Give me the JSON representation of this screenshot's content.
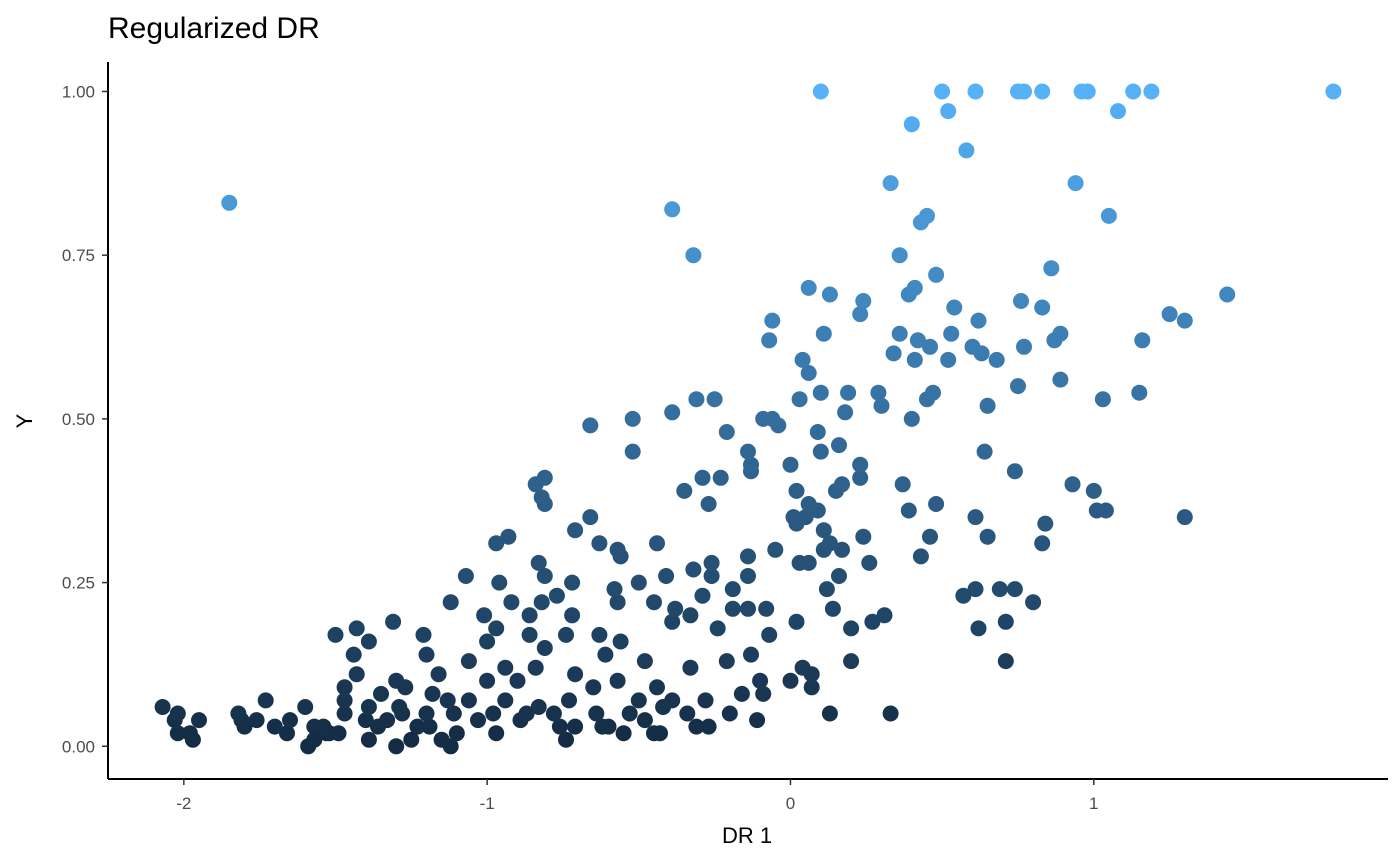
{
  "chart_data": {
    "type": "scatter",
    "title": "Regularized DR",
    "xlabel": "DR 1",
    "ylabel": "Y",
    "xlim": [
      -2.25,
      1.97
    ],
    "ylim": [
      -0.05,
      1.045
    ],
    "x_ticks": [
      -2,
      -1,
      0,
      1
    ],
    "x_tick_labels": [
      "-2",
      "-1",
      "0",
      "1"
    ],
    "y_ticks": [
      0,
      0.25,
      0.5,
      0.75,
      1
    ],
    "y_tick_labels": [
      "0.00",
      "0.25",
      "0.50",
      "0.75",
      "1.00"
    ],
    "grid": false,
    "legend": "none",
    "color_scale": {
      "low": "#132b43",
      "high": "#56b1f7",
      "mapped_to": "y"
    },
    "points": [
      [
        0.1,
        1.0
      ],
      [
        0.5,
        1.0
      ],
      [
        0.61,
        1.0
      ],
      [
        0.75,
        1.0
      ],
      [
        0.77,
        1.0
      ],
      [
        0.83,
        1.0
      ],
      [
        0.96,
        1.0
      ],
      [
        0.98,
        1.0
      ],
      [
        1.13,
        1.0
      ],
      [
        1.19,
        1.0
      ],
      [
        1.79,
        1.0
      ],
      [
        0.52,
        0.97
      ],
      [
        1.08,
        0.97
      ],
      [
        0.4,
        0.95
      ],
      [
        0.58,
        0.91
      ],
      [
        -1.85,
        0.83
      ],
      [
        0.33,
        0.86
      ],
      [
        0.94,
        0.86
      ],
      [
        -0.39,
        0.82
      ],
      [
        0.45,
        0.81
      ],
      [
        1.05,
        0.81
      ],
      [
        0.43,
        0.8
      ],
      [
        -0.32,
        0.75
      ],
      [
        0.36,
        0.75
      ],
      [
        0.48,
        0.72
      ],
      [
        0.86,
        0.73
      ],
      [
        0.41,
        0.7
      ],
      [
        0.06,
        0.7
      ],
      [
        0.13,
        0.69
      ],
      [
        0.39,
        0.69
      ],
      [
        1.44,
        0.69
      ],
      [
        0.24,
        0.68
      ],
      [
        0.76,
        0.68
      ],
      [
        0.54,
        0.67
      ],
      [
        0.83,
        0.67
      ],
      [
        0.23,
        0.66
      ],
      [
        1.25,
        0.66
      ],
      [
        -0.06,
        0.65
      ],
      [
        0.62,
        0.65
      ],
      [
        1.3,
        0.65
      ],
      [
        0.11,
        0.63
      ],
      [
        0.36,
        0.63
      ],
      [
        0.53,
        0.63
      ],
      [
        0.89,
        0.63
      ],
      [
        -0.07,
        0.62
      ],
      [
        0.42,
        0.62
      ],
      [
        0.87,
        0.62
      ],
      [
        1.16,
        0.62
      ],
      [
        0.46,
        0.61
      ],
      [
        0.6,
        0.61
      ],
      [
        0.77,
        0.61
      ],
      [
        0.34,
        0.6
      ],
      [
        0.63,
        0.6
      ],
      [
        0.04,
        0.59
      ],
      [
        0.41,
        0.59
      ],
      [
        0.52,
        0.59
      ],
      [
        0.68,
        0.59
      ],
      [
        0.06,
        0.57
      ],
      [
        0.89,
        0.56
      ],
      [
        0.75,
        0.55
      ],
      [
        0.1,
        0.54
      ],
      [
        0.19,
        0.54
      ],
      [
        0.29,
        0.54
      ],
      [
        0.47,
        0.54
      ],
      [
        1.15,
        0.54
      ],
      [
        -0.31,
        0.53
      ],
      [
        -0.25,
        0.53
      ],
      [
        0.03,
        0.53
      ],
      [
        0.45,
        0.53
      ],
      [
        1.03,
        0.53
      ],
      [
        0.3,
        0.52
      ],
      [
        0.65,
        0.52
      ],
      [
        -0.39,
        0.51
      ],
      [
        0.18,
        0.51
      ],
      [
        -0.52,
        0.5
      ],
      [
        -0.09,
        0.5
      ],
      [
        -0.06,
        0.5
      ],
      [
        0.4,
        0.5
      ],
      [
        -0.66,
        0.49
      ],
      [
        -0.04,
        0.49
      ],
      [
        -0.21,
        0.48
      ],
      [
        0.09,
        0.48
      ],
      [
        0.16,
        0.46
      ],
      [
        -0.52,
        0.45
      ],
      [
        -0.14,
        0.45
      ],
      [
        0.1,
        0.45
      ],
      [
        0.64,
        0.45
      ],
      [
        -0.13,
        0.43
      ],
      [
        0.0,
        0.43
      ],
      [
        0.23,
        0.43
      ],
      [
        -0.13,
        0.42
      ],
      [
        0.74,
        0.42
      ],
      [
        -0.81,
        0.41
      ],
      [
        -0.29,
        0.41
      ],
      [
        -0.23,
        0.41
      ],
      [
        0.23,
        0.41
      ],
      [
        -0.84,
        0.4
      ],
      [
        0.17,
        0.4
      ],
      [
        0.37,
        0.4
      ],
      [
        0.93,
        0.4
      ],
      [
        -0.35,
        0.39
      ],
      [
        0.02,
        0.39
      ],
      [
        0.15,
        0.39
      ],
      [
        1.0,
        0.39
      ],
      [
        -0.82,
        0.38
      ],
      [
        -0.81,
        0.37
      ],
      [
        -0.27,
        0.37
      ],
      [
        0.06,
        0.37
      ],
      [
        0.48,
        0.37
      ],
      [
        0.09,
        0.36
      ],
      [
        0.39,
        0.36
      ],
      [
        1.01,
        0.36
      ],
      [
        1.04,
        0.36
      ],
      [
        -0.66,
        0.35
      ],
      [
        0.01,
        0.35
      ],
      [
        0.05,
        0.35
      ],
      [
        0.61,
        0.35
      ],
      [
        1.3,
        0.35
      ],
      [
        0.02,
        0.34
      ],
      [
        0.84,
        0.34
      ],
      [
        -0.71,
        0.33
      ],
      [
        0.11,
        0.33
      ],
      [
        -0.93,
        0.32
      ],
      [
        0.24,
        0.32
      ],
      [
        0.46,
        0.32
      ],
      [
        0.65,
        0.32
      ],
      [
        -0.97,
        0.31
      ],
      [
        -0.63,
        0.31
      ],
      [
        -0.44,
        0.31
      ],
      [
        0.13,
        0.31
      ],
      [
        0.83,
        0.31
      ],
      [
        -0.57,
        0.3
      ],
      [
        -0.05,
        0.3
      ],
      [
        0.11,
        0.3
      ],
      [
        0.17,
        0.3
      ],
      [
        -0.56,
        0.29
      ],
      [
        -0.14,
        0.29
      ],
      [
        0.43,
        0.29
      ],
      [
        -0.83,
        0.28
      ],
      [
        -0.26,
        0.28
      ],
      [
        0.03,
        0.28
      ],
      [
        0.06,
        0.28
      ],
      [
        0.26,
        0.28
      ],
      [
        -1.07,
        0.26
      ],
      [
        -0.81,
        0.26
      ],
      [
        -0.41,
        0.26
      ],
      [
        -0.26,
        0.26
      ],
      [
        -0.14,
        0.26
      ],
      [
        0.16,
        0.26
      ],
      [
        -0.32,
        0.27
      ],
      [
        -0.5,
        0.25
      ],
      [
        -0.72,
        0.25
      ],
      [
        -0.96,
        0.25
      ],
      [
        -0.58,
        0.24
      ],
      [
        -0.19,
        0.24
      ],
      [
        0.12,
        0.24
      ],
      [
        0.61,
        0.24
      ],
      [
        0.69,
        0.24
      ],
      [
        0.74,
        0.24
      ],
      [
        -0.77,
        0.23
      ],
      [
        -0.29,
        0.23
      ],
      [
        0.57,
        0.23
      ],
      [
        -0.92,
        0.22
      ],
      [
        -1.12,
        0.22
      ],
      [
        -0.82,
        0.22
      ],
      [
        -0.45,
        0.22
      ],
      [
        -0.57,
        0.22
      ],
      [
        -0.38,
        0.21
      ],
      [
        -0.19,
        0.21
      ],
      [
        0.14,
        0.21
      ],
      [
        -0.14,
        0.21
      ],
      [
        -0.08,
        0.21
      ],
      [
        0.8,
        0.22
      ],
      [
        -1.01,
        0.2
      ],
      [
        -0.86,
        0.2
      ],
      [
        -0.72,
        0.2
      ],
      [
        -0.33,
        0.2
      ],
      [
        0.31,
        0.2
      ],
      [
        -0.39,
        0.19
      ],
      [
        0.02,
        0.19
      ],
      [
        0.27,
        0.19
      ],
      [
        -1.31,
        0.19
      ],
      [
        0.71,
        0.19
      ],
      [
        -0.86,
        0.17
      ],
      [
        -1.21,
        0.17
      ],
      [
        -0.97,
        0.18
      ],
      [
        -0.74,
        0.17
      ],
      [
        -0.63,
        0.17
      ],
      [
        -0.56,
        0.16
      ],
      [
        0.2,
        0.18
      ],
      [
        -0.24,
        0.18
      ],
      [
        -0.07,
        0.17
      ],
      [
        0.62,
        0.18
      ],
      [
        -1.5,
        0.17
      ],
      [
        -1.43,
        0.18
      ],
      [
        -1.39,
        0.16
      ],
      [
        -1.44,
        0.14
      ],
      [
        -1.2,
        0.14
      ],
      [
        -1.0,
        0.16
      ],
      [
        -0.81,
        0.15
      ],
      [
        -0.61,
        0.14
      ],
      [
        -0.48,
        0.13
      ],
      [
        -0.21,
        0.13
      ],
      [
        -0.13,
        0.14
      ],
      [
        0.04,
        0.12
      ],
      [
        0.2,
        0.13
      ],
      [
        -1.06,
        0.13
      ],
      [
        -0.94,
        0.12
      ],
      [
        -0.84,
        0.12
      ],
      [
        -0.71,
        0.11
      ],
      [
        -0.57,
        0.1
      ],
      [
        -0.33,
        0.12
      ],
      [
        0.07,
        0.11
      ],
      [
        -1.43,
        0.11
      ],
      [
        -1.16,
        0.11
      ],
      [
        -1.0,
        0.1
      ],
      [
        -0.9,
        0.1
      ],
      [
        -0.65,
        0.09
      ],
      [
        -0.44,
        0.09
      ],
      [
        -0.1,
        0.1
      ],
      [
        0.0,
        0.1
      ],
      [
        0.07,
        0.09
      ],
      [
        0.71,
        0.13
      ],
      [
        -1.3,
        0.1
      ],
      [
        -1.27,
        0.09
      ],
      [
        -1.18,
        0.08
      ],
      [
        -1.13,
        0.07
      ],
      [
        -1.06,
        0.07
      ],
      [
        -0.94,
        0.07
      ],
      [
        -0.83,
        0.06
      ],
      [
        -0.73,
        0.07
      ],
      [
        -0.5,
        0.07
      ],
      [
        -0.39,
        0.07
      ],
      [
        -0.28,
        0.07
      ],
      [
        -0.16,
        0.08
      ],
      [
        -0.09,
        0.08
      ],
      [
        -1.47,
        0.09
      ],
      [
        -1.47,
        0.07
      ],
      [
        -1.35,
        0.08
      ],
      [
        -1.29,
        0.06
      ],
      [
        -1.2,
        0.05
      ],
      [
        -1.11,
        0.05
      ],
      [
        -0.98,
        0.05
      ],
      [
        -0.87,
        0.05
      ],
      [
        -0.78,
        0.05
      ],
      [
        -0.64,
        0.05
      ],
      [
        -0.53,
        0.05
      ],
      [
        -0.42,
        0.06
      ],
      [
        -0.34,
        0.05
      ],
      [
        -0.2,
        0.05
      ],
      [
        0.13,
        0.05
      ],
      [
        0.33,
        0.05
      ],
      [
        -2.07,
        0.06
      ],
      [
        -2.02,
        0.05
      ],
      [
        -1.82,
        0.05
      ],
      [
        -1.73,
        0.07
      ],
      [
        -1.6,
        0.06
      ],
      [
        -1.47,
        0.05
      ],
      [
        -1.39,
        0.06
      ],
      [
        -1.28,
        0.05
      ],
      [
        -2.03,
        0.04
      ],
      [
        -1.95,
        0.04
      ],
      [
        -1.81,
        0.04
      ],
      [
        -1.76,
        0.04
      ],
      [
        -1.65,
        0.04
      ],
      [
        -1.57,
        0.03
      ],
      [
        -1.54,
        0.03
      ],
      [
        -1.4,
        0.04
      ],
      [
        -1.33,
        0.04
      ],
      [
        -1.19,
        0.03
      ],
      [
        -1.03,
        0.04
      ],
      [
        -0.89,
        0.04
      ],
      [
        -0.76,
        0.03
      ],
      [
        -0.62,
        0.03
      ],
      [
        -0.48,
        0.04
      ],
      [
        -0.27,
        0.03
      ],
      [
        -0.11,
        0.04
      ],
      [
        -1.8,
        0.03
      ],
      [
        -1.7,
        0.03
      ],
      [
        -1.53,
        0.02
      ],
      [
        -1.49,
        0.02
      ],
      [
        -1.36,
        0.03
      ],
      [
        -1.23,
        0.03
      ],
      [
        -1.1,
        0.02
      ],
      [
        -0.97,
        0.02
      ],
      [
        -0.71,
        0.03
      ],
      [
        -0.55,
        0.02
      ],
      [
        -0.43,
        0.02
      ],
      [
        -0.31,
        0.03
      ],
      [
        -2.02,
        0.02
      ],
      [
        -1.98,
        0.02
      ],
      [
        -1.66,
        0.02
      ],
      [
        -1.52,
        0.02
      ],
      [
        -1.39,
        0.01
      ],
      [
        -1.25,
        0.01
      ],
      [
        -1.15,
        0.01
      ],
      [
        -1.97,
        0.01
      ],
      [
        -1.57,
        0.01
      ],
      [
        -1.12,
        0.0
      ],
      [
        -1.59,
        0.0
      ],
      [
        -1.3,
        0.0
      ],
      [
        -0.74,
        0.01
      ],
      [
        -0.45,
        0.02
      ],
      [
        -0.6,
        0.03
      ]
    ]
  }
}
